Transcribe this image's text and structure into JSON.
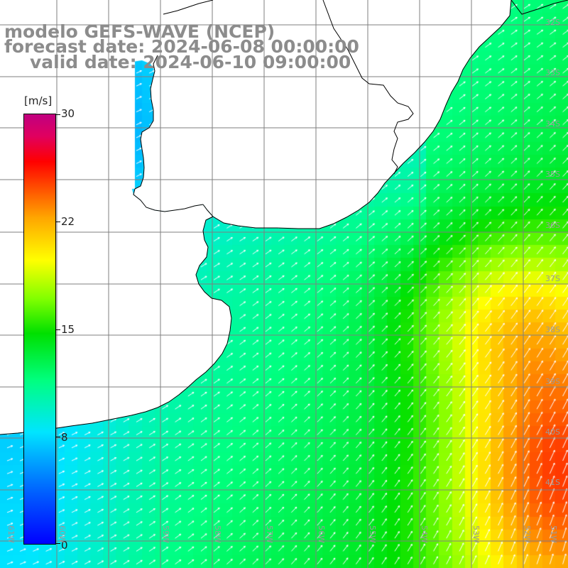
{
  "title": {
    "line1": "modelo GEFS-WAVE (NCEP)",
    "line2": "forecast date: 2024-06-08 00:00:00",
    "line3": "valid date: 2024-06-10 09:00:00"
  },
  "colorbar": {
    "unit": "[m/s]",
    "ticks": [
      "30",
      "22",
      "15",
      "8",
      "0"
    ],
    "min": 0,
    "max": 30
  },
  "latitude_labels": [
    "32S",
    "33S",
    "34S",
    "35S",
    "36S",
    "37S",
    "38S",
    "39S",
    "40S",
    "41S"
  ],
  "longitude_labels": [
    "61W",
    "60W",
    "59W",
    "58W",
    "57W",
    "56W",
    "55W",
    "54W",
    "53W",
    "52W",
    "51W"
  ],
  "colors": {
    "title_text": "#8c8c8c",
    "land": "#ffffff",
    "grid": "#7f7f7f",
    "coast": "#000000",
    "arrows": "#ffffff"
  },
  "map_data": {
    "region": "Rio de la Plata / South Atlantic",
    "lon_range": [
      -61.5,
      -51
    ],
    "lat_range": [
      -41.5,
      -31
    ],
    "variable": "wind speed",
    "units": "m/s"
  }
}
